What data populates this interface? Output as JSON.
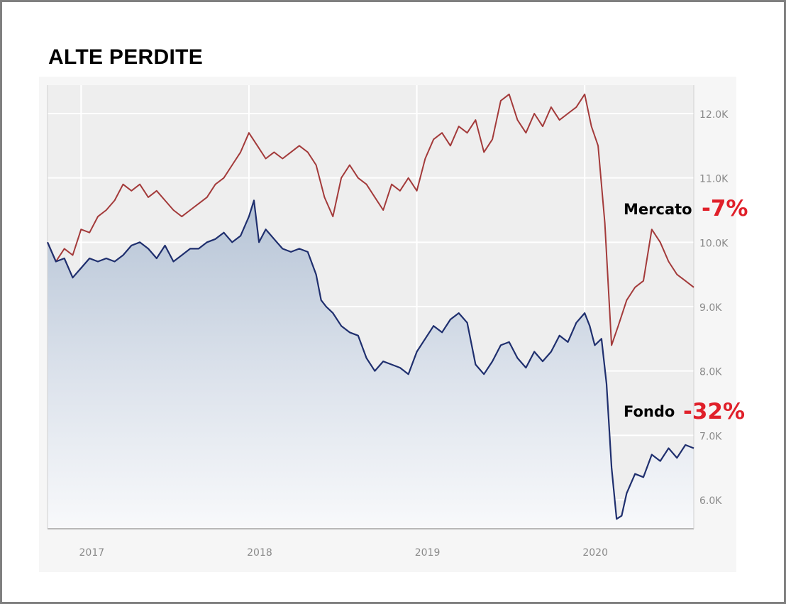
{
  "title": "ALTE PERDITE",
  "colors": {
    "mercato": "#a33a3a",
    "fondo": "#1f2f6e",
    "change": "#e0202a",
    "plot_bg": "#eeeeee",
    "grid": "#ffffff",
    "axis_text": "#8a8a8a"
  },
  "chart_data": {
    "type": "line",
    "title": "ALTE PERDITE",
    "xlabel": "",
    "ylabel": "",
    "x_ticks": [
      "2017",
      "2018",
      "2019",
      "2020"
    ],
    "y_ticks": [
      "6.0K",
      "7.0K",
      "8.0K",
      "9.0K",
      "10.0K",
      "11.0K",
      "12.0K"
    ],
    "ylim": [
      5600,
      12400
    ],
    "grid": true,
    "x_unit": "year",
    "series": [
      {
        "name": "Mercato",
        "change": "-7%",
        "points": [
          [
            2016.8,
            10000
          ],
          [
            2016.85,
            9700
          ],
          [
            2016.9,
            9900
          ],
          [
            2016.95,
            9800
          ],
          [
            2017.0,
            10200
          ],
          [
            2017.05,
            10150
          ],
          [
            2017.1,
            10400
          ],
          [
            2017.15,
            10500
          ],
          [
            2017.2,
            10650
          ],
          [
            2017.25,
            10900
          ],
          [
            2017.3,
            10800
          ],
          [
            2017.35,
            10900
          ],
          [
            2017.4,
            10700
          ],
          [
            2017.45,
            10800
          ],
          [
            2017.5,
            10650
          ],
          [
            2017.55,
            10500
          ],
          [
            2017.6,
            10400
          ],
          [
            2017.65,
            10500
          ],
          [
            2017.7,
            10600
          ],
          [
            2017.75,
            10700
          ],
          [
            2017.8,
            10900
          ],
          [
            2017.85,
            11000
          ],
          [
            2017.9,
            11200
          ],
          [
            2017.95,
            11400
          ],
          [
            2018.0,
            11700
          ],
          [
            2018.05,
            11500
          ],
          [
            2018.1,
            11300
          ],
          [
            2018.15,
            11400
          ],
          [
            2018.2,
            11300
          ],
          [
            2018.25,
            11400
          ],
          [
            2018.3,
            11500
          ],
          [
            2018.35,
            11400
          ],
          [
            2018.4,
            11200
          ],
          [
            2018.45,
            10700
          ],
          [
            2018.5,
            10400
          ],
          [
            2018.55,
            11000
          ],
          [
            2018.6,
            11200
          ],
          [
            2018.65,
            11000
          ],
          [
            2018.7,
            10900
          ],
          [
            2018.75,
            10700
          ],
          [
            2018.8,
            10500
          ],
          [
            2018.85,
            10900
          ],
          [
            2018.9,
            10800
          ],
          [
            2018.95,
            11000
          ],
          [
            2019.0,
            10800
          ],
          [
            2019.05,
            11300
          ],
          [
            2019.1,
            11600
          ],
          [
            2019.15,
            11700
          ],
          [
            2019.2,
            11500
          ],
          [
            2019.25,
            11800
          ],
          [
            2019.3,
            11700
          ],
          [
            2019.35,
            11900
          ],
          [
            2019.4,
            11400
          ],
          [
            2019.45,
            11600
          ],
          [
            2019.5,
            12200
          ],
          [
            2019.55,
            12300
          ],
          [
            2019.6,
            11900
          ],
          [
            2019.65,
            11700
          ],
          [
            2019.7,
            12000
          ],
          [
            2019.75,
            11800
          ],
          [
            2019.8,
            12100
          ],
          [
            2019.85,
            11900
          ],
          [
            2019.9,
            12000
          ],
          [
            2019.95,
            12100
          ],
          [
            2020.0,
            12300
          ],
          [
            2020.04,
            11800
          ],
          [
            2020.08,
            11500
          ],
          [
            2020.12,
            10300
          ],
          [
            2020.16,
            8400
          ],
          [
            2020.2,
            8700
          ],
          [
            2020.25,
            9100
          ],
          [
            2020.3,
            9300
          ],
          [
            2020.35,
            9400
          ],
          [
            2020.4,
            10200
          ],
          [
            2020.45,
            10000
          ],
          [
            2020.5,
            9700
          ],
          [
            2020.55,
            9500
          ],
          [
            2020.6,
            9400
          ],
          [
            2020.65,
            9300
          ]
        ]
      },
      {
        "name": "Fondo",
        "change": "-32%",
        "points": [
          [
            2016.8,
            10000
          ],
          [
            2016.85,
            9700
          ],
          [
            2016.9,
            9750
          ],
          [
            2016.95,
            9450
          ],
          [
            2017.0,
            9600
          ],
          [
            2017.05,
            9750
          ],
          [
            2017.1,
            9700
          ],
          [
            2017.15,
            9750
          ],
          [
            2017.2,
            9700
          ],
          [
            2017.25,
            9800
          ],
          [
            2017.3,
            9950
          ],
          [
            2017.35,
            10000
          ],
          [
            2017.4,
            9900
          ],
          [
            2017.45,
            9750
          ],
          [
            2017.5,
            9950
          ],
          [
            2017.55,
            9700
          ],
          [
            2017.6,
            9800
          ],
          [
            2017.65,
            9900
          ],
          [
            2017.7,
            9900
          ],
          [
            2017.75,
            10000
          ],
          [
            2017.8,
            10050
          ],
          [
            2017.85,
            10150
          ],
          [
            2017.9,
            10000
          ],
          [
            2017.95,
            10100
          ],
          [
            2018.0,
            10400
          ],
          [
            2018.03,
            10650
          ],
          [
            2018.06,
            10000
          ],
          [
            2018.1,
            10200
          ],
          [
            2018.15,
            10050
          ],
          [
            2018.2,
            9900
          ],
          [
            2018.25,
            9850
          ],
          [
            2018.3,
            9900
          ],
          [
            2018.35,
            9850
          ],
          [
            2018.4,
            9500
          ],
          [
            2018.43,
            9100
          ],
          [
            2018.46,
            9000
          ],
          [
            2018.5,
            8900
          ],
          [
            2018.55,
            8700
          ],
          [
            2018.6,
            8600
          ],
          [
            2018.65,
            8550
          ],
          [
            2018.7,
            8200
          ],
          [
            2018.75,
            8000
          ],
          [
            2018.8,
            8150
          ],
          [
            2018.85,
            8100
          ],
          [
            2018.9,
            8050
          ],
          [
            2018.95,
            7950
          ],
          [
            2019.0,
            8300
          ],
          [
            2019.05,
            8500
          ],
          [
            2019.1,
            8700
          ],
          [
            2019.15,
            8600
          ],
          [
            2019.2,
            8800
          ],
          [
            2019.25,
            8900
          ],
          [
            2019.3,
            8750
          ],
          [
            2019.35,
            8100
          ],
          [
            2019.4,
            7950
          ],
          [
            2019.45,
            8150
          ],
          [
            2019.5,
            8400
          ],
          [
            2019.55,
            8450
          ],
          [
            2019.6,
            8200
          ],
          [
            2019.65,
            8050
          ],
          [
            2019.7,
            8300
          ],
          [
            2019.75,
            8150
          ],
          [
            2019.8,
            8300
          ],
          [
            2019.85,
            8550
          ],
          [
            2019.9,
            8450
          ],
          [
            2019.95,
            8750
          ],
          [
            2020.0,
            8900
          ],
          [
            2020.03,
            8700
          ],
          [
            2020.06,
            8400
          ],
          [
            2020.1,
            8500
          ],
          [
            2020.13,
            7800
          ],
          [
            2020.16,
            6500
          ],
          [
            2020.19,
            5700
          ],
          [
            2020.22,
            5750
          ],
          [
            2020.25,
            6100
          ],
          [
            2020.3,
            6400
          ],
          [
            2020.35,
            6350
          ],
          [
            2020.4,
            6700
          ],
          [
            2020.45,
            6600
          ],
          [
            2020.5,
            6800
          ],
          [
            2020.55,
            6650
          ],
          [
            2020.6,
            6850
          ],
          [
            2020.65,
            6800
          ]
        ]
      }
    ]
  }
}
